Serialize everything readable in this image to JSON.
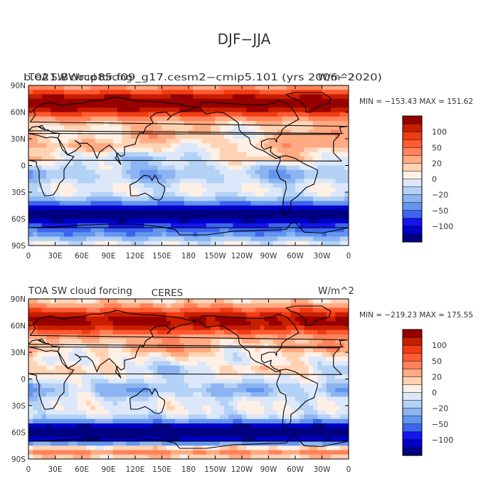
{
  "page": {
    "title": "DJF−JJA"
  },
  "colors": {
    "levels": [
      "#000080",
      "#0000c8",
      "#1414f0",
      "#3c64f0",
      "#6496f0",
      "#8cb4f0",
      "#b4d2f5",
      "#dce8fa",
      "#fff0e6",
      "#ffd2b4",
      "#ffaa82",
      "#ff825a",
      "#ff5a32",
      "#f03c14",
      "#c81e00",
      "#960000"
    ]
  },
  "colorbar": {
    "labels": [
      "100",
      "50",
      "20",
      "0",
      "−20",
      "−50",
      "−100"
    ]
  },
  "chart_data": [
    {
      "type": "heatmap",
      "title_left": "TOA SW cloud forcing",
      "title_right": "W/m^2",
      "title_center": "",
      "overprinted_title": "b.e21.BWrcp85.f09_g17.cesm2−cmip5.101 (yrs 2006−2020)",
      "stats": "MIN = −153.43  MAX = 151.62",
      "min": -153.43,
      "max": 151.62,
      "x_ticks": [
        "0",
        "30E",
        "60E",
        "90E",
        "120E",
        "150E",
        "180",
        "150W",
        "120W",
        "90W",
        "60W",
        "30W",
        "0"
      ],
      "y_ticks": [
        "90N",
        "60N",
        "30N",
        "0",
        "30S",
        "60S",
        "90S"
      ],
      "xlim": [
        0,
        360
      ],
      "ylim": [
        -90,
        90
      ],
      "levels": [
        -100,
        -80,
        -65,
        -50,
        -35,
        -20,
        -10,
        0,
        10,
        20,
        35,
        50,
        65,
        80,
        100
      ]
    },
    {
      "type": "heatmap",
      "title_left": "TOA SW cloud forcing",
      "title_right": "W/m^2",
      "title_center": "CERES",
      "overprinted_title": "",
      "stats": "MIN = −219.23  MAX = 175.55",
      "min": -219.23,
      "max": 175.55,
      "x_ticks": [
        "0",
        "30E",
        "60E",
        "90E",
        "120E",
        "150E",
        "180",
        "150W",
        "120W",
        "90W",
        "60W",
        "30W",
        "0"
      ],
      "y_ticks": [
        "90N",
        "60N",
        "30N",
        "0",
        "30S",
        "60S",
        "90S"
      ],
      "xlim": [
        0,
        360
      ],
      "ylim": [
        -90,
        90
      ],
      "levels": [
        -100,
        -80,
        -65,
        -50,
        -35,
        -20,
        -10,
        0,
        10,
        20,
        35,
        50,
        65,
        80,
        100
      ]
    }
  ]
}
